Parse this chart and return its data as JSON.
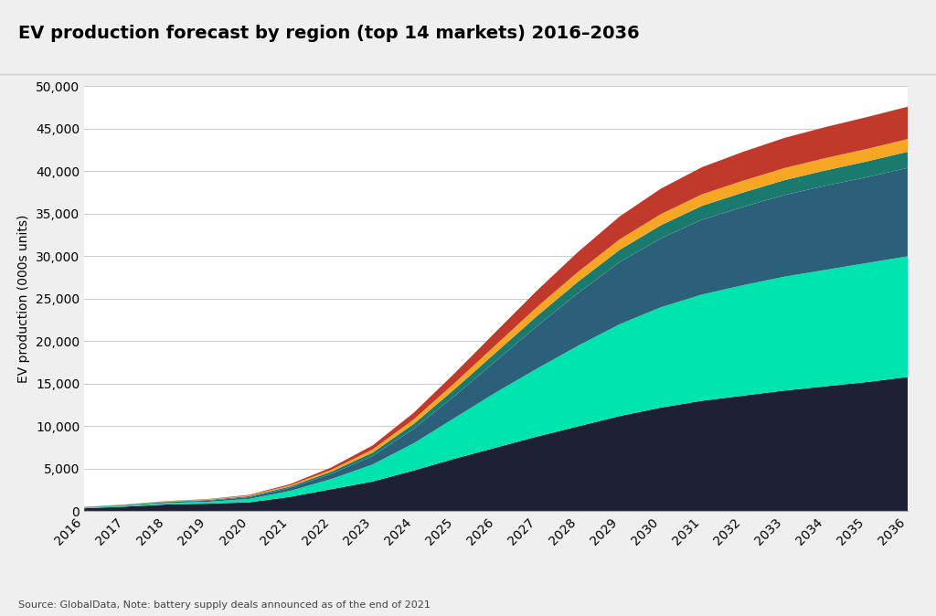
{
  "title": "EV production forecast by region (top 14 markets) 2016–2036",
  "ylabel": "EV production (000s units)",
  "source": "Source: GlobalData, Note: battery supply deals announced as of the end of 2021",
  "years": [
    2016,
    2017,
    2018,
    2019,
    2020,
    2021,
    2022,
    2023,
    2024,
    2025,
    2026,
    2027,
    2028,
    2029,
    2030,
    2031,
    2032,
    2033,
    2034,
    2035,
    2036
  ],
  "series": {
    "China": [
      350,
      550,
      800,
      900,
      1050,
      1700,
      2600,
      3500,
      4800,
      6200,
      7500,
      8800,
      10000,
      11200,
      12200,
      13000,
      13600,
      14200,
      14700,
      15200,
      15800
    ],
    "Europe": [
      80,
      120,
      180,
      220,
      400,
      700,
      1200,
      2000,
      3200,
      4800,
      6500,
      8000,
      9500,
      10800,
      11800,
      12500,
      13000,
      13400,
      13700,
      14000,
      14200
    ],
    "North America": [
      40,
      60,
      90,
      130,
      200,
      350,
      600,
      1000,
      1700,
      2600,
      3700,
      5000,
      6200,
      7300,
      8100,
      8800,
      9200,
      9600,
      9900,
      10100,
      10400
    ],
    "Japan": [
      25,
      40,
      60,
      80,
      120,
      170,
      260,
      400,
      580,
      800,
      1000,
      1200,
      1350,
      1450,
      1550,
      1630,
      1700,
      1750,
      1800,
      1850,
      1900
    ],
    "Korea": [
      15,
      25,
      40,
      55,
      80,
      130,
      220,
      360,
      530,
      720,
      900,
      1050,
      1150,
      1230,
      1300,
      1350,
      1390,
      1420,
      1450,
      1470,
      1490
    ],
    "Other": [
      8,
      15,
      30,
      50,
      80,
      150,
      280,
      480,
      780,
      1150,
      1550,
      1950,
      2350,
      2700,
      3000,
      3200,
      3400,
      3550,
      3650,
      3750,
      3810
    ]
  },
  "colors": {
    "China": "#1e2035",
    "Europe": "#00e5b0",
    "North America": "#2b5f7a",
    "Japan": "#1a7a6e",
    "Korea": "#f5a623",
    "Other": "#c0392b"
  },
  "ylim": [
    0,
    50000
  ],
  "yticks": [
    0,
    5000,
    10000,
    15000,
    20000,
    25000,
    30000,
    35000,
    40000,
    45000,
    50000
  ],
  "background_color": "#efefef",
  "plot_background": "#ffffff",
  "title_fontsize": 14,
  "axis_fontsize": 10,
  "legend_fontsize": 10
}
